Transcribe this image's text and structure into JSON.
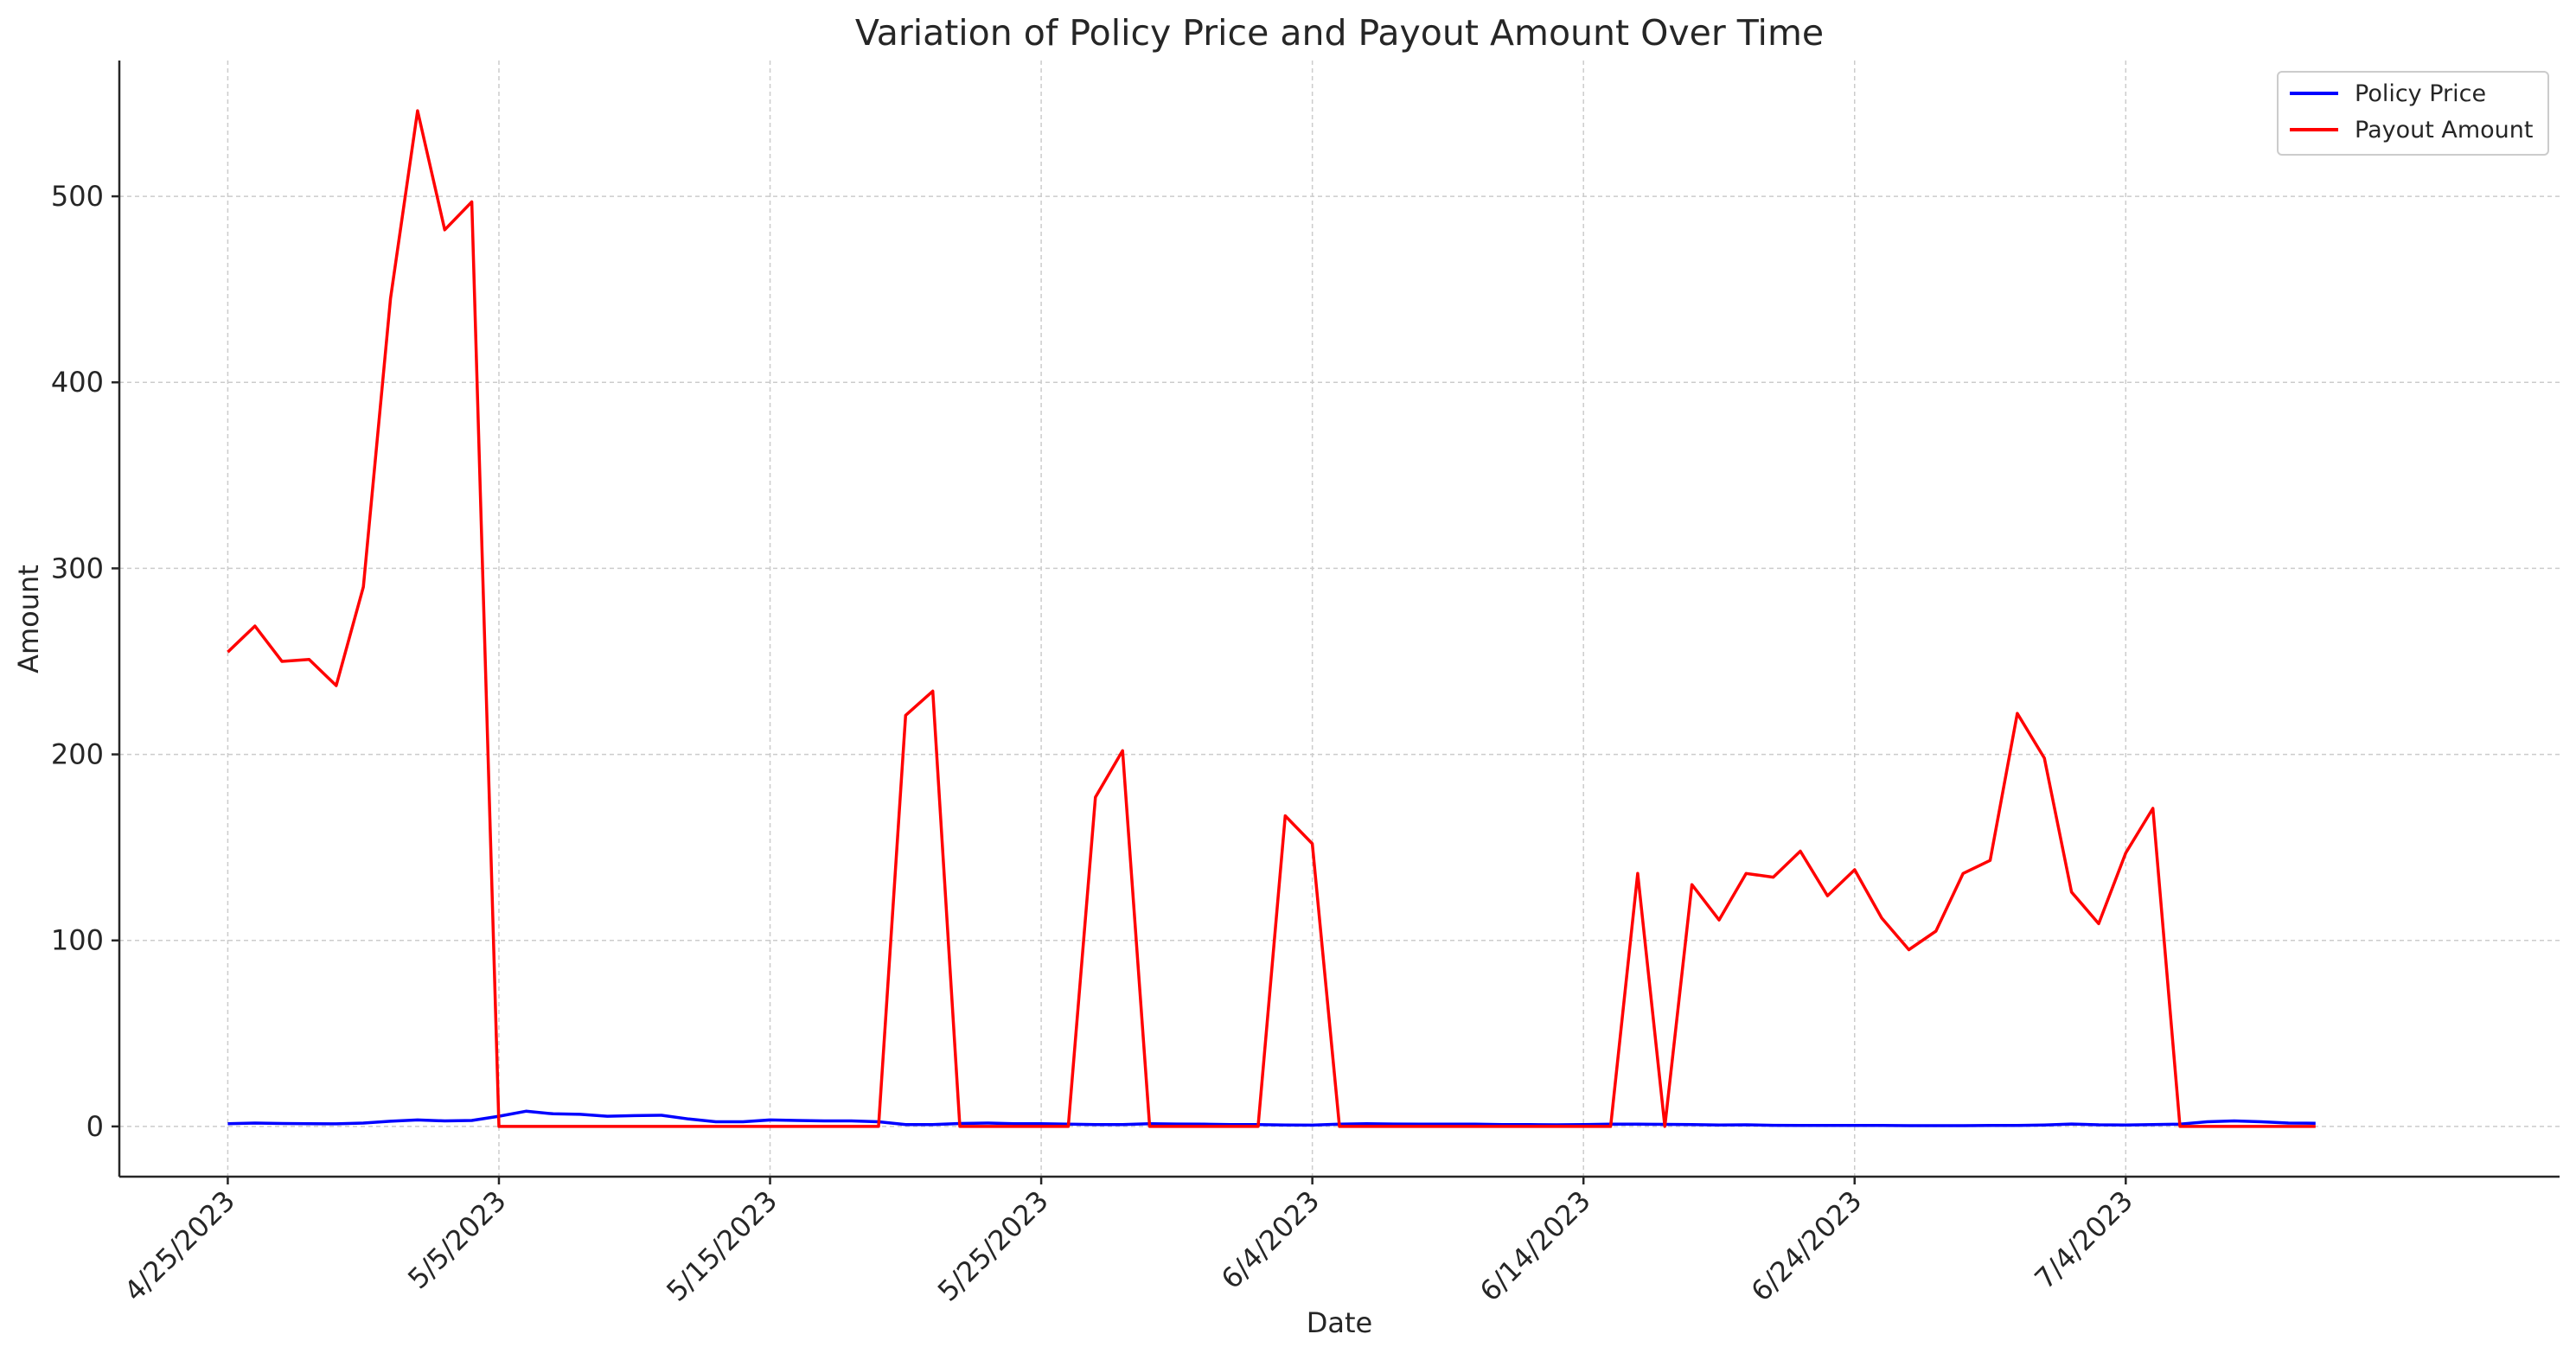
{
  "chart_data": {
    "type": "line",
    "title": "Variation of Policy Price and Payout Amount Over Time",
    "xlabel": "Date",
    "ylabel": "Amount",
    "x_start": "2023-04-25",
    "x_end": "2023-07-11",
    "xlim": [
      "2023-04-21",
      "2023-07-20"
    ],
    "ylim": [
      -27,
      573
    ],
    "grid": true,
    "legend_position": "top-right",
    "x_ticks": [
      {
        "date": "2023-04-25",
        "label": "4/25/2023"
      },
      {
        "date": "2023-05-05",
        "label": "5/5/2023"
      },
      {
        "date": "2023-05-15",
        "label": "5/15/2023"
      },
      {
        "date": "2023-05-25",
        "label": "5/25/2023"
      },
      {
        "date": "2023-06-04",
        "label": "6/4/2023"
      },
      {
        "date": "2023-06-14",
        "label": "6/14/2023"
      },
      {
        "date": "2023-06-24",
        "label": "6/24/2023"
      },
      {
        "date": "2023-07-04",
        "label": "7/4/2023"
      }
    ],
    "y_ticks": [
      0,
      100,
      200,
      300,
      400,
      500
    ],
    "series": [
      {
        "name": "Policy Price",
        "color": "#0000ff",
        "values": [
          1.5,
          1.8,
          1.6,
          1.5,
          1.4,
          1.8,
          2.8,
          3.5,
          3.0,
          3.2,
          5.5,
          8.2,
          6.8,
          6.5,
          5.5,
          5.8,
          6.0,
          4.0,
          2.5,
          2.5,
          3.5,
          3.2,
          3.0,
          3.0,
          2.5,
          1.0,
          1.0,
          1.6,
          1.8,
          1.5,
          1.5,
          1.2,
          1.0,
          1.0,
          1.5,
          1.3,
          1.2,
          1.0,
          1.0,
          0.8,
          0.7,
          1.2,
          1.5,
          1.3,
          1.2,
          1.2,
          1.2,
          1.0,
          1.0,
          0.9,
          1.0,
          1.2,
          1.2,
          1.1,
          1.0,
          0.8,
          0.9,
          0.6,
          0.5,
          0.5,
          0.5,
          0.5,
          0.4,
          0.4,
          0.4,
          0.5,
          0.5,
          0.8,
          1.3,
          0.9,
          0.8,
          1.0,
          1.2,
          2.5,
          3.0,
          2.5,
          1.8,
          1.7
        ]
      },
      {
        "name": "Payout Amount",
        "color": "#ff0000",
        "values": [
          255,
          269,
          250,
          251,
          237,
          290,
          445,
          546,
          482,
          497,
          0,
          0,
          0,
          0,
          0,
          0,
          0,
          0,
          0,
          0,
          0,
          0,
          0,
          0,
          0,
          221,
          234,
          0,
          0,
          0,
          0,
          0,
          177,
          202,
          0,
          0,
          0,
          0,
          0,
          167,
          152,
          0,
          0,
          0,
          0,
          0,
          0,
          0,
          0,
          0,
          0,
          0,
          136,
          0,
          130,
          111,
          136,
          134,
          148,
          124,
          138,
          112,
          95,
          105,
          136,
          143,
          222,
          198,
          126,
          109,
          147,
          171,
          0,
          0,
          0,
          0,
          0,
          0
        ]
      }
    ]
  }
}
